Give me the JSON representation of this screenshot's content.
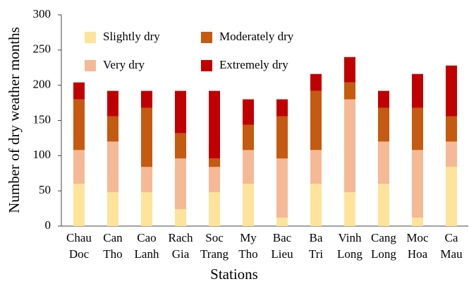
{
  "chart_data": {
    "type": "stacked_bar",
    "x_label": "Stations",
    "y_label": "Number of dry weather months",
    "categories": [
      [
        "Chau",
        "Doc"
      ],
      [
        "Can",
        "Tho"
      ],
      [
        "Cao",
        "Lanh"
      ],
      [
        "Rach",
        "Gia"
      ],
      [
        "Soc",
        "Trang"
      ],
      [
        "My",
        "Tho"
      ],
      [
        "Bac",
        "Lieu"
      ],
      [
        "Ba",
        "Tri"
      ],
      [
        "Vinh",
        "Long"
      ],
      [
        "Cang",
        "Long"
      ],
      [
        "Moc",
        "Hoa"
      ],
      [
        "Ca",
        "Mau"
      ]
    ],
    "series": [
      {
        "name": "Slightly dry",
        "color": "#fde49a",
        "values": [
          60,
          48,
          48,
          24,
          48,
          60,
          12,
          60,
          48,
          60,
          12,
          84
        ]
      },
      {
        "name": "Very dry",
        "color": "#f6b995",
        "values": [
          48,
          72,
          36,
          72,
          36,
          48,
          84,
          48,
          132,
          60,
          96,
          36
        ]
      },
      {
        "name": "Moderately dry",
        "color": "#c55a11",
        "values": [
          72,
          36,
          84,
          36,
          12,
          36,
          60,
          84,
          24,
          48,
          60,
          36
        ]
      },
      {
        "name": "Extremely dry",
        "color": "#c00000",
        "values": [
          24,
          36,
          24,
          60,
          96,
          36,
          24,
          24,
          36,
          24,
          48,
          72
        ]
      }
    ],
    "ylim": [
      0,
      300
    ],
    "yticks": [
      0,
      50,
      100,
      150,
      200,
      250,
      300
    ],
    "grid": false
  }
}
